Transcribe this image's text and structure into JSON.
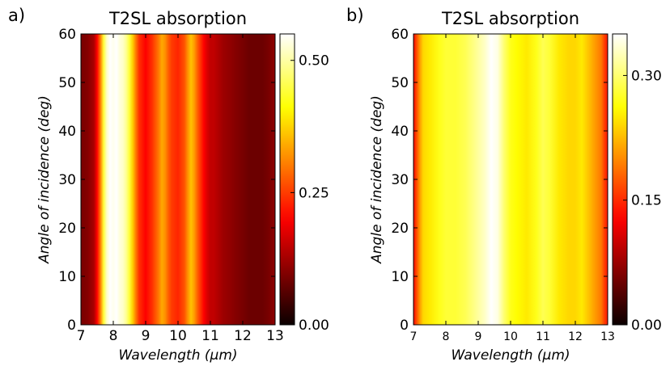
{
  "chart_data": [
    {
      "type": "heatmap",
      "panel_label": "a)",
      "title": "T2SL absorption",
      "xlabel": "Wavelength (μm)",
      "ylabel": "Angle of incidence (deg)",
      "xlim": [
        7,
        13
      ],
      "ylim": [
        0,
        60
      ],
      "x_ticks": [
        "7",
        "8",
        "9",
        "10",
        "11",
        "12",
        "13"
      ],
      "y_ticks": [
        "0",
        "10",
        "20",
        "30",
        "40",
        "50",
        "60"
      ],
      "colorbar": {
        "colormap": "hot",
        "range": [
          0,
          0.55
        ],
        "ticks": [
          "0.00",
          "0.25",
          "0.50"
        ],
        "tick_values": [
          0,
          0.25,
          0.5
        ]
      },
      "wavelength_profile": {
        "x": [
          7.0,
          7.2,
          7.4,
          7.5,
          7.6,
          7.7,
          7.8,
          7.9,
          8.0,
          8.1,
          8.2,
          8.3,
          8.4,
          8.5,
          8.6,
          8.7,
          8.8,
          9.0,
          9.2,
          9.4,
          9.5,
          9.6,
          9.7,
          9.8,
          10.0,
          10.2,
          10.3,
          10.4,
          10.5,
          10.6,
          10.8,
          10.9,
          11.0,
          11.1,
          11.2,
          11.4,
          11.6,
          11.8,
          12.0,
          12.2,
          12.4,
          12.6,
          12.8,
          13.0
        ],
        "values": [
          0.09,
          0.1,
          0.13,
          0.2,
          0.3,
          0.44,
          0.52,
          0.55,
          0.54,
          0.55,
          0.53,
          0.52,
          0.49,
          0.44,
          0.37,
          0.3,
          0.24,
          0.2,
          0.24,
          0.3,
          0.34,
          0.32,
          0.28,
          0.25,
          0.23,
          0.27,
          0.32,
          0.36,
          0.33,
          0.28,
          0.2,
          0.17,
          0.15,
          0.15,
          0.14,
          0.12,
          0.11,
          0.1,
          0.09,
          0.08,
          0.08,
          0.08,
          0.09,
          0.11
        ]
      }
    },
    {
      "type": "heatmap",
      "panel_label": "b)",
      "title": "T2SL absorption",
      "xlabel": "Wavelength (μm)",
      "ylabel": "Angle of incidence (deg)",
      "xlim": [
        7,
        13
      ],
      "ylim": [
        0,
        60
      ],
      "x_ticks": [
        "7",
        "8",
        "9",
        "10",
        "11",
        "12",
        "13"
      ],
      "y_ticks": [
        "0",
        "10",
        "20",
        "30",
        "40",
        "50",
        "60"
      ],
      "colorbar": {
        "colormap": "hot",
        "range": [
          0,
          0.35
        ],
        "ticks": [
          "0.00",
          "0.15",
          "0.30"
        ],
        "tick_values": [
          0,
          0.15,
          0.3
        ]
      },
      "wavelength_profile": {
        "x": [
          7.0,
          7.1,
          7.2,
          7.3,
          7.5,
          7.8,
          8.0,
          8.3,
          8.6,
          8.9,
          9.2,
          9.4,
          9.6,
          9.8,
          10.0,
          10.2,
          10.5,
          10.8,
          11.0,
          11.2,
          11.5,
          11.8,
          12.0,
          12.2,
          12.4,
          12.6,
          12.8,
          12.9,
          13.0
        ],
        "values": [
          0.13,
          0.17,
          0.21,
          0.24,
          0.25,
          0.27,
          0.28,
          0.28,
          0.29,
          0.31,
          0.33,
          0.35,
          0.34,
          0.3,
          0.27,
          0.26,
          0.25,
          0.27,
          0.29,
          0.28,
          0.25,
          0.24,
          0.24,
          0.25,
          0.23,
          0.21,
          0.19,
          0.16,
          0.14
        ]
      }
    }
  ]
}
